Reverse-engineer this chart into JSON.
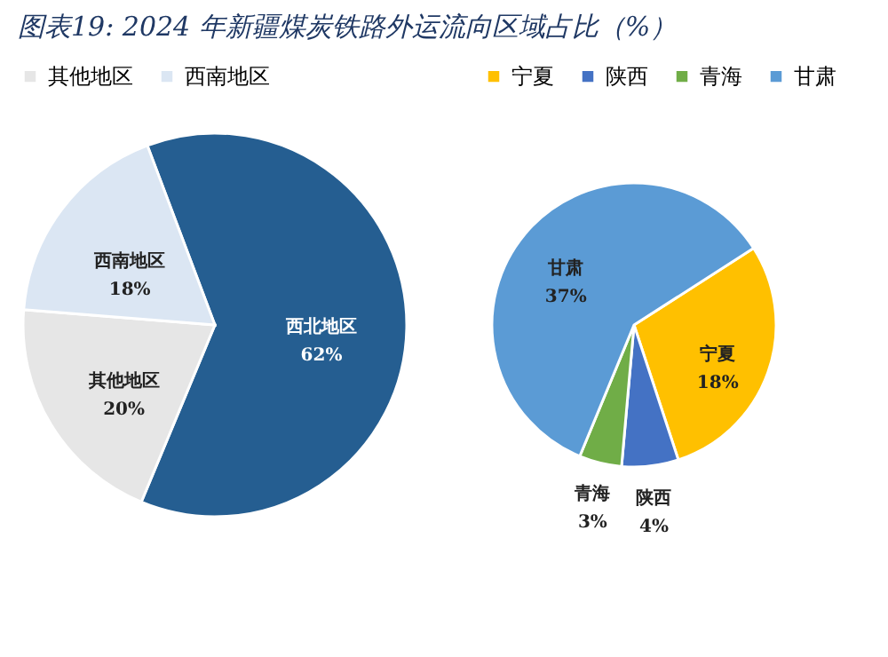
{
  "chart_data": [
    {
      "type": "pie",
      "title": "图表19: 2024 年新疆煤炭铁路外运流向区域占比（%）",
      "categories": [
        "西北地区",
        "其他地区",
        "西南地区"
      ],
      "values": [
        62,
        20,
        18
      ],
      "value_labels": [
        "62%",
        "20%",
        "18%"
      ],
      "colors": [
        "#255e91",
        "#e6e6e6",
        "#dbe6f3"
      ],
      "legend": "top"
    },
    {
      "type": "pie",
      "categories": [
        "宁夏",
        "陕西",
        "青海",
        "甘肃"
      ],
      "values": [
        18,
        4,
        3,
        37
      ],
      "value_labels": [
        "18%",
        "4%",
        "3%",
        "37%"
      ],
      "colors": [
        "#ffc000",
        "#4472c4",
        "#70ad47",
        "#5b9bd5"
      ],
      "legend": "top"
    }
  ]
}
